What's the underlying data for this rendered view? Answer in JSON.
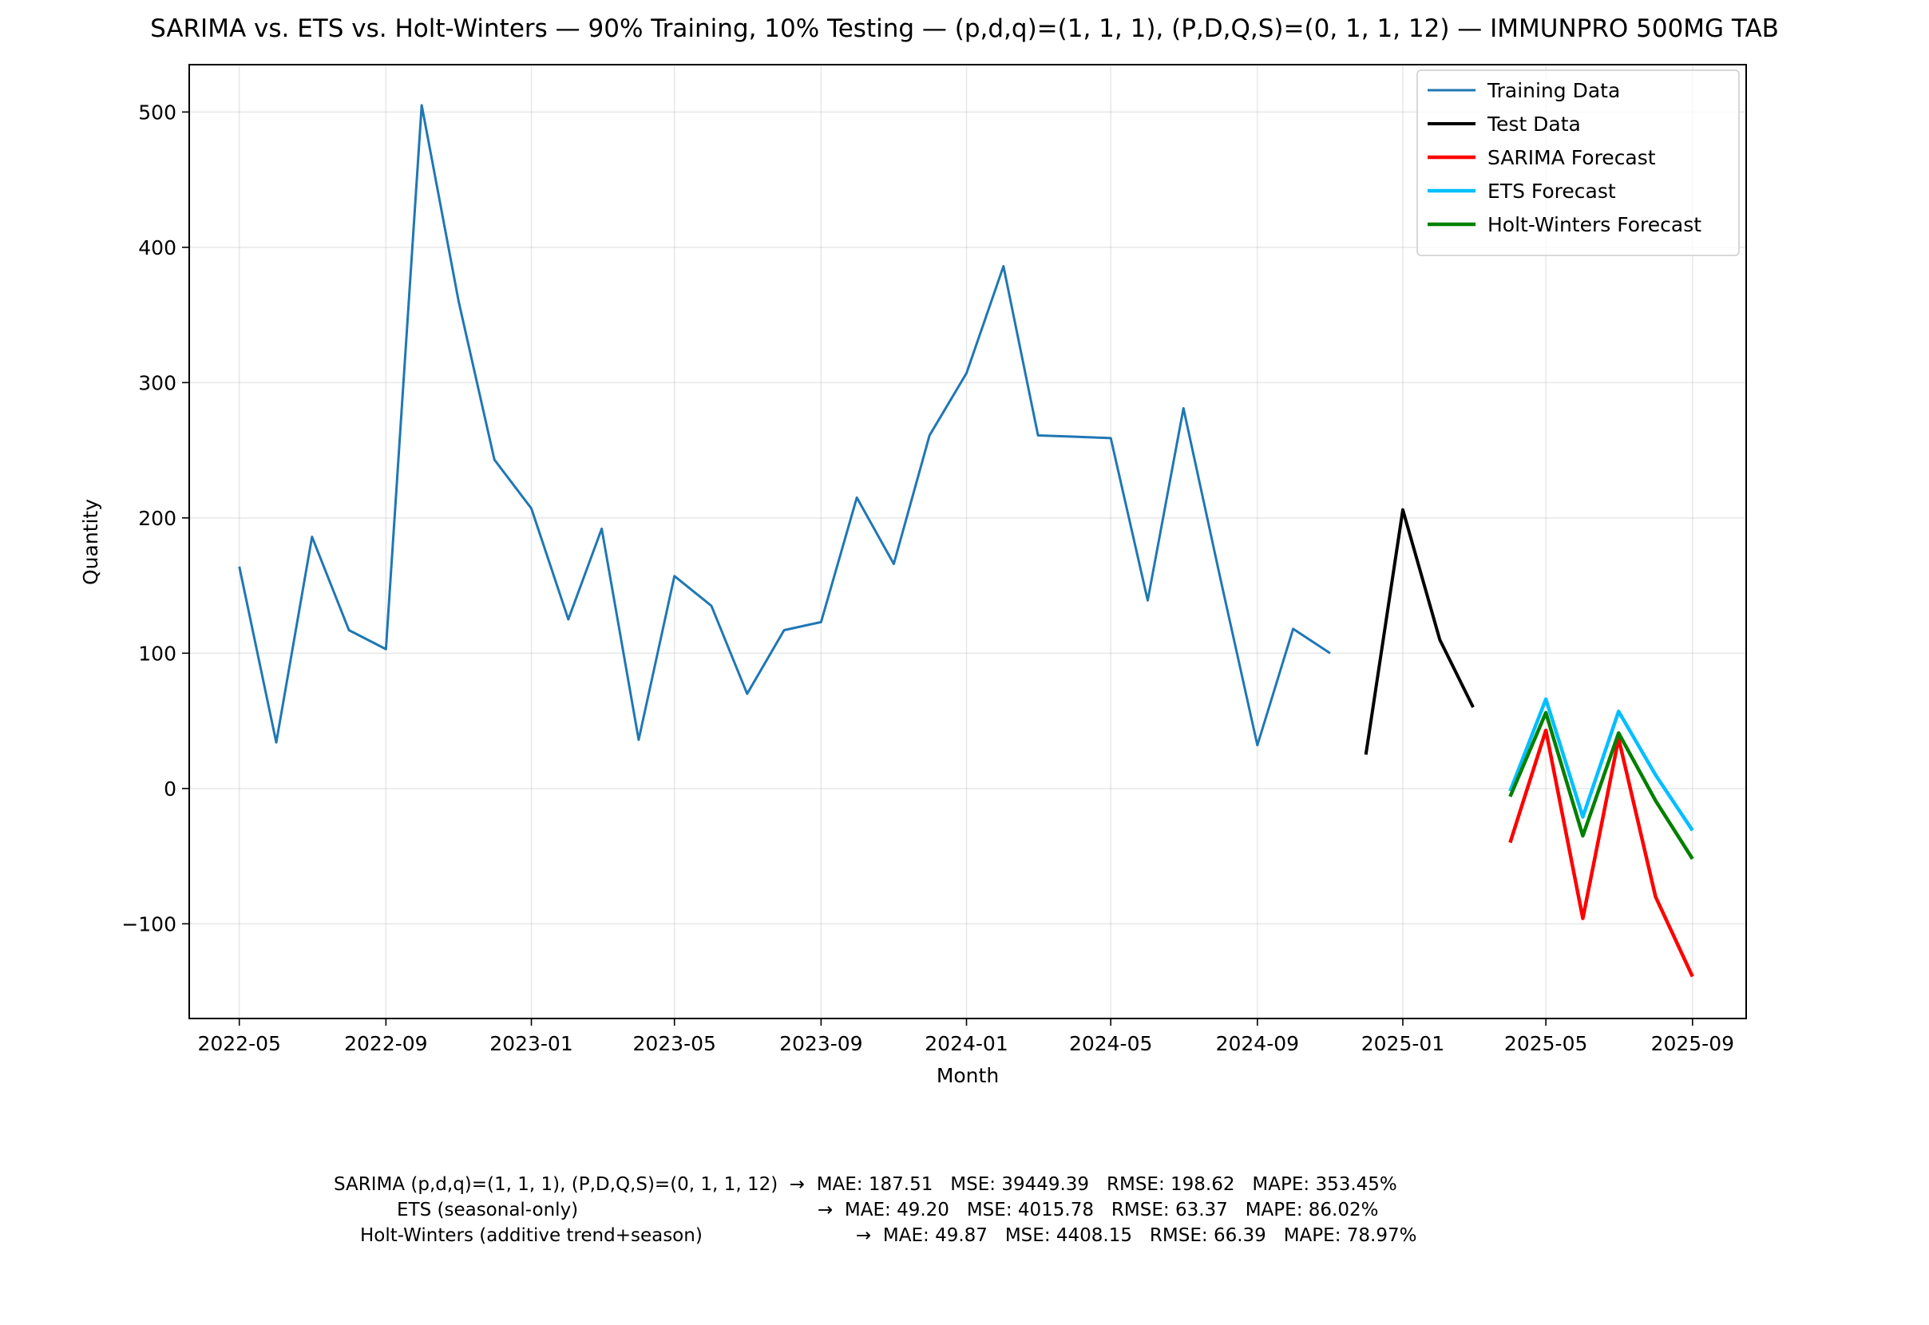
{
  "chart_data": {
    "type": "line",
    "title": "SARIMA vs. ETS vs. Holt-Winters — 90% Training, 10% Testing — (p,d,q)=(1, 1, 1), (P,D,Q,S)=(0, 1, 1, 12) — IMMUNPRO 500MG TAB",
    "xlabel": "Month",
    "ylabel": "Quantity",
    "ylim": [
      -170,
      535
    ],
    "xlim": [
      "2022-03-20",
      "2025-10-16"
    ],
    "x_ticks": [
      "2022-05",
      "2022-09",
      "2023-01",
      "2023-05",
      "2023-09",
      "2024-01",
      "2024-05",
      "2024-09",
      "2025-01",
      "2025-05",
      "2025-09"
    ],
    "y_ticks": [
      -100,
      0,
      100,
      200,
      300,
      400,
      500
    ],
    "y_tick_labels": [
      "−100",
      "0",
      "100",
      "200",
      "300",
      "400",
      "500"
    ],
    "grid": true,
    "legend_position": "top-right",
    "series": [
      {
        "name": "Training Data",
        "color": "#1f77b4",
        "width": 3,
        "x": [
          "2022-05",
          "2022-06",
          "2022-07",
          "2022-08",
          "2022-09",
          "2022-10",
          "2022-11",
          "2022-12",
          "2023-01",
          "2023-02",
          "2023-03",
          "2023-04",
          "2023-05",
          "2023-06",
          "2023-07",
          "2023-08",
          "2023-09",
          "2023-10",
          "2023-11",
          "2023-12",
          "2024-01",
          "2024-02",
          "2024-03",
          "2024-04",
          "2024-05",
          "2024-06",
          "2024-07",
          "2024-08",
          "2024-09",
          "2024-10",
          "2024-11"
        ],
        "y": [
          164,
          34,
          186,
          117,
          103,
          505,
          360,
          243,
          207,
          125,
          192,
          36,
          157,
          135,
          70,
          117,
          123,
          215,
          166,
          261,
          307,
          386,
          261,
          260,
          259,
          139,
          281,
          155,
          32,
          118,
          100
        ]
      },
      {
        "name": "Test Data",
        "color": "#000000",
        "width": 4,
        "x": [
          "2024-12",
          "2025-01",
          "2025-02",
          "2025-03"
        ],
        "y": [
          25,
          206,
          110,
          60
        ]
      },
      {
        "name": "SARIMA Forecast",
        "color": "#ff0000",
        "width": 4.5,
        "x": [
          "2025-04",
          "2025-05",
          "2025-06",
          "2025-07",
          "2025-08",
          "2025-09"
        ],
        "y": [
          -40,
          43,
          -96,
          37,
          -80,
          -139
        ]
      },
      {
        "name": "ETS Forecast",
        "color": "#00bfff",
        "width": 4.5,
        "x": [
          "2025-04",
          "2025-05",
          "2025-06",
          "2025-07",
          "2025-08",
          "2025-09"
        ],
        "y": [
          -2,
          66,
          -21,
          57,
          10,
          -31
        ]
      },
      {
        "name": "Holt-Winters Forecast",
        "color": "#008000",
        "width": 4.5,
        "x": [
          "2025-04",
          "2025-05",
          "2025-06",
          "2025-07",
          "2025-08",
          "2025-09"
        ],
        "y": [
          -6,
          56,
          -35,
          41,
          -9,
          -52
        ]
      }
    ]
  },
  "metrics": {
    "sarima": "SARIMA (p,d,q)=(1, 1, 1), (P,D,Q,S)=(0, 1, 1, 12)  →  MAE: 187.51   MSE: 39449.39   RMSE: 198.62   MAPE: 353.45%",
    "ets_label": "ETS (seasonal-only)",
    "ets_values": "→  MAE: 49.20   MSE: 4015.78   RMSE: 63.37   MAPE: 86.02%",
    "hw_label": "Holt-Winters (additive trend+season)",
    "hw_values": "→  MAE: 49.87   MSE: 4408.15   RMSE: 66.39   MAPE: 78.97%"
  }
}
